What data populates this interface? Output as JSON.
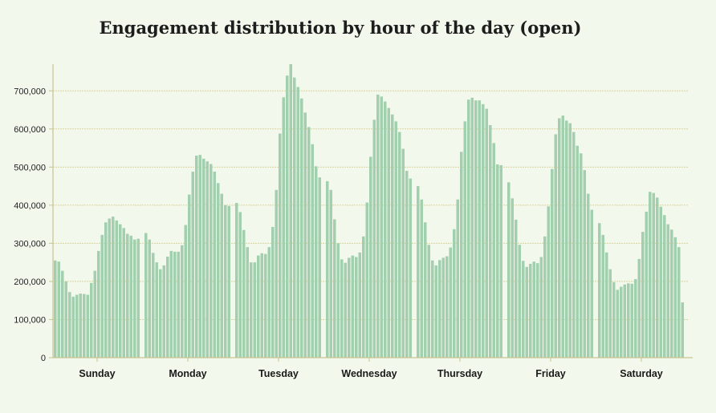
{
  "chart_data": {
    "type": "bar",
    "title": "Engagement distribution by hour of the day (open)",
    "xlabel": "",
    "ylabel": "",
    "ylim": [
      0,
      770000
    ],
    "y_ticks": [
      0,
      100000,
      200000,
      300000,
      400000,
      500000,
      600000,
      700000
    ],
    "y_tick_labels": [
      "0",
      "100,000",
      "200,000",
      "300,000",
      "400,000",
      "500,000",
      "600,000",
      "700,000"
    ],
    "grid": "horizontal",
    "bar_color": "#a2cfae",
    "grid_color": "#dcd39c",
    "groups": [
      {
        "label": "Sunday",
        "values": [
          255000,
          252000,
          228000,
          200000,
          172000,
          160000,
          165000,
          168000,
          167000,
          165000,
          196000,
          228000,
          280000,
          322000,
          355000,
          365000,
          370000,
          360000,
          350000,
          340000,
          325000,
          320000,
          310000,
          312000
        ]
      },
      {
        "label": "Monday",
        "values": [
          327000,
          310000,
          275000,
          250000,
          232000,
          242000,
          265000,
          280000,
          278000,
          278000,
          295000,
          348000,
          428000,
          488000,
          530000,
          532000,
          522000,
          515000,
          508000,
          488000,
          458000,
          430000,
          400000,
          398000
        ]
      },
      {
        "label": "Tuesday",
        "values": [
          406000,
          382000,
          335000,
          290000,
          250000,
          250000,
          268000,
          274000,
          272000,
          290000,
          343000,
          440000,
          588000,
          683000,
          740000,
          770000,
          735000,
          710000,
          680000,
          643000,
          605000,
          560000,
          502000,
          473000
        ]
      },
      {
        "label": "Wednesday",
        "values": [
          463000,
          440000,
          363000,
          300000,
          258000,
          249000,
          262000,
          268000,
          264000,
          276000,
          318000,
          407000,
          527000,
          624000,
          690000,
          685000,
          672000,
          655000,
          638000,
          620000,
          592000,
          548000,
          490000,
          470000
        ]
      },
      {
        "label": "Thursday",
        "values": [
          450000,
          415000,
          355000,
          296000,
          255000,
          242000,
          256000,
          262000,
          266000,
          289000,
          337000,
          415000,
          540000,
          620000,
          677000,
          682000,
          675000,
          675000,
          665000,
          653000,
          610000,
          563000,
          507000,
          505000
        ]
      },
      {
        "label": "Friday",
        "values": [
          460000,
          418000,
          362000,
          296000,
          254000,
          238000,
          246000,
          252000,
          248000,
          264000,
          318000,
          397000,
          495000,
          586000,
          628000,
          635000,
          622000,
          615000,
          592000,
          556000,
          536000,
          492000,
          430000,
          388000
        ]
      },
      {
        "label": "Saturday",
        "values": [
          353000,
          322000,
          276000,
          232000,
          198000,
          178000,
          186000,
          192000,
          195000,
          194000,
          206000,
          259000,
          330000,
          383000,
          435000,
          432000,
          420000,
          396000,
          374000,
          350000,
          336000,
          316000,
          290000,
          145000
        ]
      }
    ]
  }
}
